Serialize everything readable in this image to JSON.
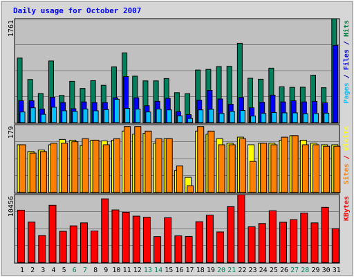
{
  "chart_data": {
    "type": "bar",
    "title": "Daily usage for October 2007",
    "days": [
      "1",
      "2",
      "3",
      "4",
      "5",
      "6",
      "7",
      "8",
      "9",
      "10",
      "11",
      "12",
      "13",
      "14",
      "15",
      "16",
      "17",
      "18",
      "19",
      "20",
      "21",
      "22",
      "23",
      "24",
      "25",
      "26",
      "27",
      "28",
      "29",
      "30",
      "31"
    ],
    "weekend_days": [
      "6",
      "7",
      "13",
      "14",
      "20",
      "21",
      "27",
      "28"
    ],
    "hits": [
      1094,
      731,
      493,
      1045,
      460,
      700,
      579,
      710,
      632,
      944,
      1182,
      787,
      707,
      707,
      747,
      507,
      490,
      891,
      902,
      950,
      954,
      1345,
      752,
      735,
      923,
      608,
      597,
      600,
      803,
      591,
      1761
    ],
    "files": [
      370,
      370,
      230,
      430,
      340,
      235,
      350,
      340,
      340,
      420,
      780,
      420,
      285,
      360,
      410,
      185,
      135,
      380,
      545,
      400,
      310,
      425,
      250,
      345,
      465,
      350,
      370,
      350,
      360,
      335,
      1310
    ],
    "pages": [
      180,
      250,
      140,
      260,
      200,
      190,
      230,
      200,
      220,
      395,
      240,
      230,
      180,
      230,
      215,
      115,
      70,
      215,
      225,
      155,
      190,
      205,
      110,
      155,
      170,
      165,
      165,
      150,
      155,
      160,
      0
    ],
    "visits": [
      126,
      108,
      112,
      126,
      140,
      138,
      124,
      138,
      136,
      138,
      162,
      154,
      156,
      130,
      142,
      58,
      40,
      162,
      154,
      142,
      130,
      146,
      126,
      130,
      130,
      138,
      150,
      138,
      130,
      126,
      126
    ],
    "sites": [
      126,
      104,
      108,
      130,
      130,
      134,
      142,
      138,
      126,
      142,
      174,
      174,
      162,
      142,
      142,
      70,
      18,
      174,
      162,
      126,
      126,
      142,
      82,
      130,
      126,
      146,
      150,
      126,
      126,
      122,
      122
    ],
    "kbytes": [
      8060,
      6230,
      4150,
      8820,
      4800,
      5640,
      6100,
      4850,
      9800,
      8100,
      7740,
      7140,
      6960,
      3980,
      6890,
      4100,
      4010,
      6280,
      7300,
      4700,
      8600,
      10456,
      5500,
      6000,
      7970,
      6200,
      6600,
      7600,
      6100,
      8500,
      5200
    ],
    "scale": {
      "hits_files_pages_max": 1761,
      "sites_visits_max": 179,
      "kbytes_max": 10456
    },
    "side_labels": {
      "top": [
        {
          "text": "Pages",
          "color": "#00c0ff"
        },
        {
          "text": " / ",
          "color": "#0000a0"
        },
        {
          "text": "Files",
          "color": "#0000ff"
        },
        {
          "text": " / ",
          "color": "#0000a0"
        },
        {
          "text": "Hits",
          "color": "#008040"
        }
      ],
      "middle": [
        {
          "text": "Sites",
          "color": "#ff8000"
        },
        {
          "text": " / ",
          "color": "#ff0000"
        },
        {
          "text": "Visits",
          "color": "#ffff00"
        }
      ],
      "bottom": [
        {
          "text": "KBytes",
          "color": "#ff0000"
        }
      ]
    },
    "colors": {
      "hits": "#00805c",
      "files": "#0000ff",
      "pages": "#00c0ff",
      "visits": "#ffff00",
      "sites": "#ff8000",
      "kbytes": "#ff0000",
      "title": "#0000ff",
      "weekday_label": "#000000",
      "weekend_label": "#00805c",
      "panel_bg": "#c0c0c0",
      "frame_bg": "#d6d6d6"
    },
    "grid": true
  }
}
